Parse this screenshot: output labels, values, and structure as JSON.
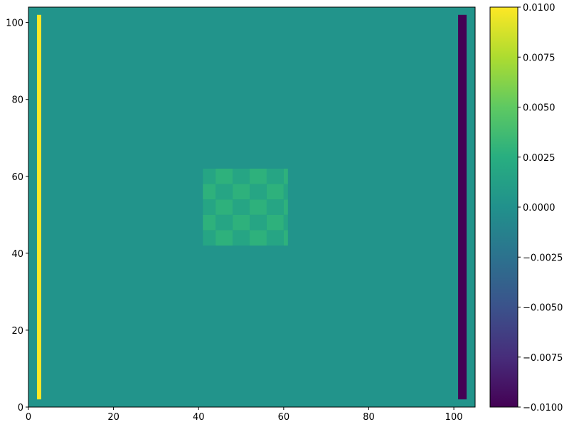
{
  "chart_data": {
    "type": "heatmap",
    "title": "",
    "xlabel": "",
    "ylabel": "",
    "xlim": [
      0,
      105
    ],
    "ylim": [
      0,
      104
    ],
    "x_ticks": [
      0,
      20,
      40,
      60,
      80,
      100
    ],
    "y_ticks": [
      0,
      20,
      40,
      60,
      80,
      100
    ],
    "colormap": "viridis",
    "clim": [
      -0.01,
      0.01
    ],
    "colorbar": {
      "ticks": [
        -0.01,
        -0.0075,
        -0.005,
        -0.0025,
        0.0,
        0.0025,
        0.005,
        0.0075,
        0.01
      ],
      "tick_labels": [
        "−0.0100",
        "−0.0075",
        "−0.0050",
        "−0.0025",
        "0.0000",
        "0.0025",
        "0.0050",
        "0.0075",
        "0.0100"
      ]
    },
    "background_value": 0.0003,
    "regions": [
      {
        "name": "left-bar",
        "x": [
          2,
          3
        ],
        "y": [
          2,
          102
        ],
        "value": 0.01
      },
      {
        "name": "right-bar",
        "x": [
          101,
          103
        ],
        "y": [
          2,
          102
        ],
        "value": -0.01
      },
      {
        "name": "checkerboard",
        "x": [
          41,
          61
        ],
        "y": [
          42,
          62
        ],
        "cols": [
          [
            41,
            44
          ],
          [
            44,
            48
          ],
          [
            48,
            52
          ],
          [
            52,
            56
          ],
          [
            56,
            60
          ],
          [
            60,
            61
          ]
        ],
        "rows": [
          [
            42,
            46
          ],
          [
            46,
            50
          ],
          [
            50,
            54
          ],
          [
            54,
            58
          ],
          [
            58,
            62
          ]
        ],
        "value_a": 0.0017,
        "value_b": 0.0028
      }
    ]
  }
}
